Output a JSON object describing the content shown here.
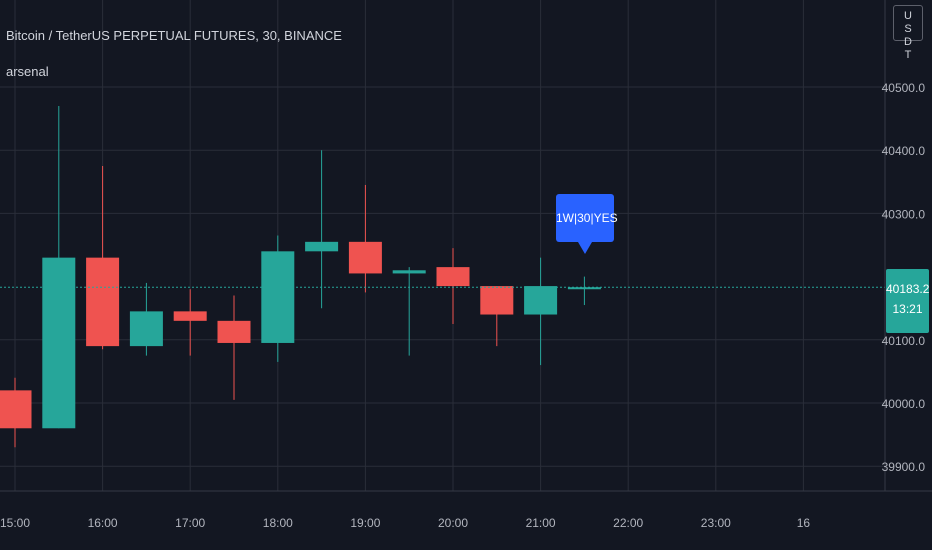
{
  "header": {
    "title": "Bitcoin / TetherUS PERPETUAL FUTURES, 30, BINANCE",
    "indicator": "arsenal",
    "currency_button": "USDT"
  },
  "price_tag": {
    "price": "40183.2",
    "countdown": "13:21"
  },
  "annotation": {
    "text": "1W|30|YES",
    "time": "21:30",
    "price": 40183.2
  },
  "colors": {
    "background": "#131722",
    "grid": "#2a2e39",
    "up": "#26a69a",
    "down": "#ef5350",
    "note": "#2962ff",
    "text": "#b2b5be"
  },
  "chart_data": {
    "type": "candlestick",
    "timeframe": "30",
    "x_ticks": [
      "15:00",
      "16:00",
      "17:00",
      "18:00",
      "19:00",
      "20:00",
      "21:00",
      "22:00",
      "23:00",
      "16"
    ],
    "y_ticks": [
      39900.0,
      40000.0,
      40100.0,
      40300.0,
      40400.0,
      40500.0
    ],
    "ylim": [
      39860,
      40650
    ],
    "current_price": 40183.2,
    "candles": [
      {
        "t": "15:00",
        "o": 40020,
        "h": 40040,
        "l": 39930,
        "c": 39960
      },
      {
        "t": "15:30",
        "o": 39960,
        "h": 40470,
        "l": 39960,
        "c": 40230
      },
      {
        "t": "16:00",
        "o": 40230,
        "h": 40375,
        "l": 40085,
        "c": 40090
      },
      {
        "t": "16:30",
        "o": 40090,
        "h": 40190,
        "l": 40075,
        "c": 40145
      },
      {
        "t": "17:00",
        "o": 40145,
        "h": 40180,
        "l": 40075,
        "c": 40130
      },
      {
        "t": "17:30",
        "o": 40130,
        "h": 40170,
        "l": 40005,
        "c": 40095
      },
      {
        "t": "18:00",
        "o": 40095,
        "h": 40265,
        "l": 40065,
        "c": 40240
      },
      {
        "t": "18:30",
        "o": 40240,
        "h": 40400,
        "l": 40150,
        "c": 40255
      },
      {
        "t": "19:00",
        "o": 40255,
        "h": 40345,
        "l": 40175,
        "c": 40205
      },
      {
        "t": "19:30",
        "o": 40205,
        "h": 40215,
        "l": 40075,
        "c": 40210
      },
      {
        "t": "20:00",
        "o": 40215,
        "h": 40245,
        "l": 40125,
        "c": 40185
      },
      {
        "t": "20:30",
        "o": 40185,
        "h": 40185,
        "l": 40090,
        "c": 40140
      },
      {
        "t": "21:00",
        "o": 40140,
        "h": 40230,
        "l": 40060,
        "c": 40185
      },
      {
        "t": "21:30",
        "o": 40180,
        "h": 40200,
        "l": 40155,
        "c": 40183.2
      }
    ]
  }
}
